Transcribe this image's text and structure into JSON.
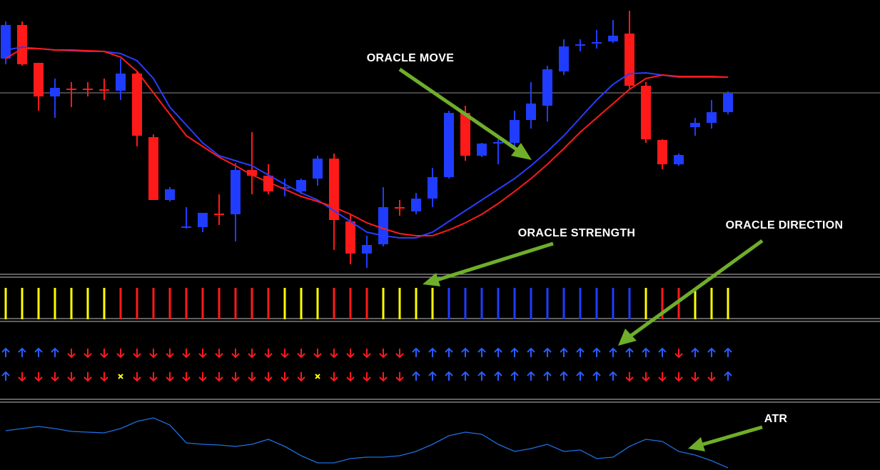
{
  "chart_data": [
    {
      "type": "candlestick",
      "annotation": "ORACLE MOVE",
      "ylim": [
        20,
        400
      ],
      "up_color": "#1f3cff",
      "down_color": "#ff1a1a",
      "open": [
        318,
        365,
        312,
        265,
        276,
        276,
        275,
        273,
        297,
        208,
        120,
        81,
        82,
        101,
        100,
        162,
        154,
        136,
        132,
        150,
        178,
        90,
        45,
        58,
        110,
        104,
        122,
        152,
        242,
        182,
        199,
        200,
        232,
        252,
        300,
        336,
        339,
        342,
        353,
        280,
        204,
        170,
        222,
        228,
        243
      ],
      "high": [
        370,
        370,
        312,
        290,
        285,
        285,
        290,
        318,
        300,
        212,
        138,
        110,
        102,
        128,
        172,
        215,
        170,
        150,
        150,
        182,
        185,
        100,
        70,
        138,
        120,
        130,
        165,
        245,
        252,
        200,
        205,
        245,
        285,
        308,
        345,
        345,
        358,
        372,
        385,
        285,
        205,
        185,
        235,
        260,
        272
      ],
      "low": [
        310,
        308,
        245,
        235,
        250,
        265,
        260,
        260,
        195,
        120,
        118,
        80,
        75,
        85,
        62,
        128,
        128,
        125,
        128,
        140,
        50,
        30,
        25,
        55,
        98,
        100,
        110,
        150,
        175,
        180,
        170,
        195,
        220,
        230,
        295,
        328,
        332,
        340,
        275,
        200,
        163,
        168,
        210,
        220,
        240
      ],
      "close": [
        365,
        310,
        265,
        277,
        274,
        274,
        273,
        297,
        210,
        120,
        135,
        83,
        102,
        99,
        162,
        154,
        132,
        138,
        148,
        178,
        92,
        45,
        57,
        110,
        108,
        122,
        152,
        242,
        182,
        199,
        201,
        232,
        255,
        303,
        335,
        338,
        341,
        350,
        280,
        205,
        170,
        183,
        228,
        243,
        269
      ],
      "lines": [
        {
          "color": "#2a3cff",
          "values": [
            330,
            334,
            332,
            330,
            329,
            328,
            328,
            325,
            315,
            290,
            250,
            225,
            200,
            182,
            175,
            168,
            155,
            142,
            130,
            120,
            105,
            90,
            75,
            70,
            67,
            67,
            75,
            90,
            105,
            120,
            135,
            150,
            168,
            188,
            210,
            235,
            260,
            282,
            297,
            298,
            295,
            292,
            292,
            292,
            292
          ]
        },
        {
          "color": "#ff1a1a",
          "values": [
            318,
            332,
            332,
            330,
            330,
            329,
            328,
            320,
            300,
            270,
            240,
            210,
            195,
            180,
            168,
            155,
            145,
            135,
            125,
            118,
            110,
            100,
            88,
            80,
            73,
            70,
            70,
            78,
            88,
            100,
            115,
            132,
            150,
            170,
            192,
            215,
            235,
            255,
            275,
            290,
            295,
            293,
            293,
            293,
            292
          ]
        }
      ]
    },
    {
      "type": "strength",
      "annotation": "ORACLE STRENGTH",
      "colors": [
        "#ffff00",
        "#ffff00",
        "#ffff00",
        "#ffff00",
        "#ffff00",
        "#ffff00",
        "#ffff00",
        "#ff1a1a",
        "#ff1a1a",
        "#ff1a1a",
        "#ff1a1a",
        "#ff1a1a",
        "#ff1a1a",
        "#ff1a1a",
        "#ff1a1a",
        "#ff1a1a",
        "#ff1a1a",
        "#ffff00",
        "#ffff00",
        "#ffff00",
        "#ff1a1a",
        "#ff1a1a",
        "#ff1a1a",
        "#ffff00",
        "#ffff00",
        "#ffff00",
        "#ffff00",
        "#1f3cff",
        "#1f3cff",
        "#1f3cff",
        "#1f3cff",
        "#1f3cff",
        "#1f3cff",
        "#1f3cff",
        "#1f3cff",
        "#1f3cff",
        "#1f3cff",
        "#1f3cff",
        "#1f3cff",
        "#ffff00",
        "#ff1a1a",
        "#ff1a1a",
        "#ffff00",
        "#ffff00",
        "#ffff00"
      ]
    },
    {
      "type": "direction",
      "annotation": "ORACLE DIRECTION",
      "colors": {
        "u": "#2a5cff",
        "d": "#ff1a1a",
        "x": "#ffff00"
      },
      "rows": [
        [
          "u",
          "u",
          "u",
          "u",
          "d",
          "d",
          "d",
          "d",
          "d",
          "d",
          "d",
          "d",
          "d",
          "d",
          "d",
          "d",
          "d",
          "d",
          "d",
          "d",
          "d",
          "d",
          "d",
          "d",
          "d",
          "u",
          "u",
          "u",
          "u",
          "u",
          "u",
          "u",
          "u",
          "u",
          "u",
          "u",
          "u",
          "u",
          "u",
          "u",
          "u",
          "d",
          "u",
          "u",
          "u"
        ],
        [
          "u",
          "d",
          "d",
          "d",
          "d",
          "d",
          "d",
          "x",
          "d",
          "d",
          "d",
          "d",
          "d",
          "d",
          "d",
          "d",
          "d",
          "d",
          "d",
          "x",
          "d",
          "d",
          "d",
          "d",
          "d",
          "u",
          "u",
          "u",
          "u",
          "u",
          "u",
          "u",
          "u",
          "u",
          "u",
          "u",
          "u",
          "u",
          "d",
          "d",
          "d",
          "d",
          "d",
          "d",
          "u"
        ]
      ]
    },
    {
      "type": "line",
      "annotation": "ATR",
      "ylim": [
        2,
        98
      ],
      "color": "#1e6fe0",
      "values": [
        57,
        60,
        63,
        60,
        56,
        55,
        54,
        60,
        70,
        75,
        65,
        40,
        38,
        37,
        35,
        38,
        45,
        35,
        22,
        12,
        12,
        18,
        20,
        20,
        22,
        28,
        38,
        50,
        55,
        52,
        38,
        28,
        32,
        38,
        28,
        30,
        18,
        20,
        35,
        45,
        42,
        28,
        23,
        15,
        5
      ]
    }
  ]
}
